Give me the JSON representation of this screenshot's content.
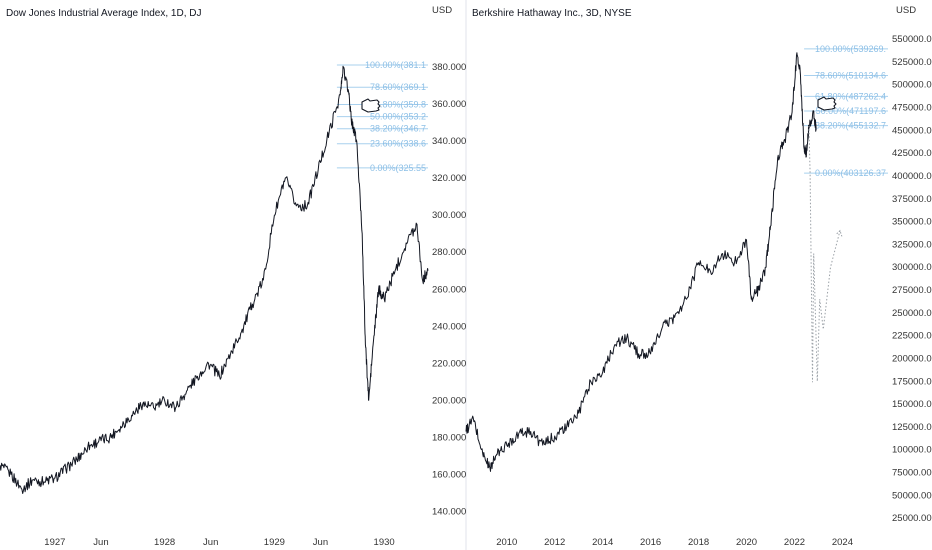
{
  "colors": {
    "price_line": "#131722",
    "fib": "#a8d0ee",
    "fib_text": "#8cbfe6",
    "projection": "#9aa0a6",
    "separator": "#e0e3eb"
  },
  "chart_data": [
    {
      "type": "line",
      "title": "Dow Jones Industrial Average Index, 1D, DJ",
      "currency": "USD",
      "ylim": [
        130,
        400
      ],
      "yticks": [
        "140.000",
        "160.000",
        "180.000",
        "200.000",
        "220.000",
        "240.000",
        "260.000",
        "280.000",
        "300.000",
        "320.000",
        "340.000",
        "360.000",
        "380.000"
      ],
      "ytick_values": [
        140,
        160,
        180,
        200,
        220,
        240,
        260,
        280,
        300,
        320,
        340,
        360,
        380
      ],
      "xlim": [
        1926.5,
        1930.4
      ],
      "xticks": [
        "1927",
        "Jun",
        "1928",
        "Jun",
        "1929",
        "Jun",
        "1930"
      ],
      "xtick_values": [
        1927.0,
        1927.42,
        1928.0,
        1928.42,
        1929.0,
        1929.42,
        1930.0
      ],
      "series": [
        {
          "x": [
            1926.5,
            1926.6,
            1926.7,
            1926.8,
            1926.9,
            1927.0,
            1927.1,
            1927.2,
            1927.3,
            1927.4,
            1927.5,
            1927.6,
            1927.7,
            1927.8,
            1927.9,
            1928.0,
            1928.1,
            1928.2,
            1928.3,
            1928.4,
            1928.5,
            1928.6,
            1928.7,
            1928.8,
            1928.9,
            1929.0,
            1929.1,
            1929.2,
            1929.3,
            1929.4,
            1929.5,
            1929.6,
            1929.63,
            1929.68,
            1929.7,
            1929.75,
            1929.8,
            1929.83,
            1929.86,
            1929.9,
            1929.95,
            1930.0,
            1930.1,
            1930.2,
            1930.3,
            1930.35,
            1930.4
          ],
          "y": [
            165,
            160,
            152,
            157,
            156,
            158,
            163,
            168,
            175,
            178,
            180,
            186,
            192,
            198,
            196,
            200,
            196,
            205,
            213,
            220,
            213,
            225,
            237,
            252,
            265,
            300,
            320,
            305,
            305,
            325,
            345,
            365,
            380,
            365,
            352,
            340,
            290,
            230,
            200,
            230,
            260,
            255,
            270,
            285,
            295,
            265,
            270
          ]
        }
      ],
      "fib_levels": [
        {
          "label": "100.00%(381.1",
          "value": 381.1
        },
        {
          "label": "78.60%(369.1",
          "value": 369.1
        },
        {
          "label": "61.80%(359.8",
          "value": 359.8
        },
        {
          "label": "50.00%(353.2",
          "value": 353.2
        },
        {
          "label": "38.20%(346.7",
          "value": 346.7
        },
        {
          "label": "23.60%(338.6",
          "value": 338.6
        },
        {
          "label": "0.00%(325.55",
          "value": 325.55
        }
      ],
      "fib_x_start": 1929.57
    },
    {
      "type": "line",
      "title": "Berkshire Hathaway Inc., 3D, NYSE",
      "currency": "USD",
      "ylim": [
        12000,
        560000
      ],
      "yticks": [
        "25000.000",
        "50000.000",
        "75000.000",
        "100000.000",
        "125000.000",
        "150000.000",
        "175000.000",
        "200000.000",
        "225000.000",
        "250000.000",
        "275000.000",
        "300000.000",
        "325000.000",
        "350000.000",
        "375000.000",
        "400000.000",
        "425000.000",
        "450000.000",
        "475000.000",
        "500000.000",
        "525000.000",
        "550000.000"
      ],
      "ytick_values": [
        25000,
        50000,
        75000,
        100000,
        125000,
        150000,
        175000,
        200000,
        225000,
        250000,
        275000,
        300000,
        325000,
        350000,
        375000,
        400000,
        425000,
        450000,
        475000,
        500000,
        525000,
        550000
      ],
      "xlim": [
        2008.3,
        2025.9
      ],
      "xticks": [
        "2010",
        "2012",
        "2014",
        "2016",
        "2018",
        "2020",
        "2022",
        "2024"
      ],
      "xtick_values": [
        2010,
        2012,
        2014,
        2016,
        2018,
        2020,
        2022,
        2024
      ],
      "series": [
        {
          "x": [
            2008.3,
            2008.6,
            2009.0,
            2009.3,
            2009.6,
            2010.0,
            2010.5,
            2011.0,
            2011.5,
            2012.0,
            2012.5,
            2013.0,
            2013.5,
            2014.0,
            2014.5,
            2015.0,
            2015.5,
            2016.0,
            2016.5,
            2017.0,
            2017.5,
            2018.0,
            2018.5,
            2019.0,
            2019.5,
            2020.0,
            2020.2,
            2020.5,
            2020.8,
            2021.0,
            2021.3,
            2021.6,
            2021.9,
            2022.1,
            2022.25,
            2022.4,
            2022.5,
            2022.6,
            2022.8,
            2022.9
          ],
          "y": [
            120000,
            135000,
            95000,
            80000,
            95000,
            105000,
            118000,
            120000,
            105000,
            115000,
            125000,
            140000,
            175000,
            185000,
            215000,
            222000,
            205000,
            205000,
            235000,
            245000,
            265000,
            305000,
            295000,
            315000,
            305000,
            330000,
            265000,
            275000,
            300000,
            345000,
            420000,
            440000,
            470000,
            535000,
            510000,
            430000,
            425000,
            455000,
            470000,
            450000
          ]
        }
      ],
      "fib_levels": [
        {
          "label": "100.00%(539269.",
          "value": 539269
        },
        {
          "label": "78.60%(510134.6",
          "value": 510134.6
        },
        {
          "label": "61.80%(487262.4",
          "value": 487262.4
        },
        {
          "label": "50.00%(471197.6",
          "value": 471197.6
        },
        {
          "label": "38.20%(455132.7",
          "value": 455132.7
        },
        {
          "label": "0.00%(403126.37",
          "value": 403126.37
        }
      ],
      "fib_x_start": 2022.4,
      "projection": {
        "x": [
          2022.6,
          2022.65,
          2022.75,
          2022.8,
          2022.95,
          2023.05,
          2023.2,
          2023.5,
          2023.9
        ],
        "y": [
          455000,
          403000,
          174000,
          315000,
          175000,
          265000,
          232000,
          300000,
          340000
        ]
      }
    }
  ]
}
